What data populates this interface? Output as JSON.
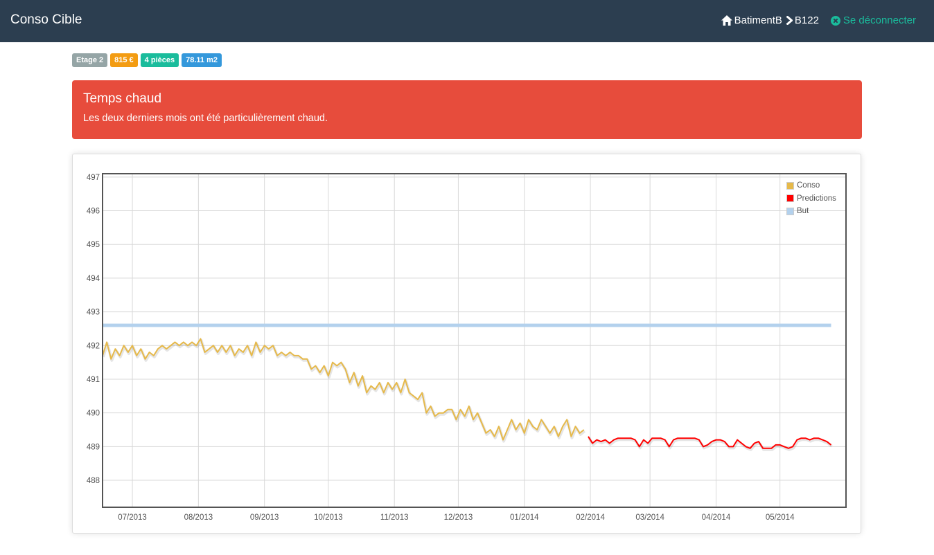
{
  "nav": {
    "brand": "Conso Cible",
    "building": "BatimentB",
    "unit": "B122",
    "logout": "Se déconnecter"
  },
  "badges": [
    {
      "label": "Etage 2",
      "color": "#95a5a6"
    },
    {
      "label": "815 €",
      "color": "#f39c12"
    },
    {
      "label": "4 pièces",
      "color": "#1abc9c"
    },
    {
      "label": "78.11 m2",
      "color": "#3498db"
    }
  ],
  "alert": {
    "title": "Temps chaud",
    "text": "Les deux derniers mois ont été particulièrement chaud."
  },
  "chart_data": {
    "type": "line",
    "title": "",
    "xlabel": "",
    "ylabel": "",
    "x_range": [
      "2013-06-17",
      "2014-06-01"
    ],
    "ylim": [
      487.2,
      497.1
    ],
    "grid": true,
    "legend_position": "top-right",
    "x_tick_labels": [
      "07/2013",
      "08/2013",
      "09/2013",
      "10/2013",
      "11/2013",
      "12/2013",
      "01/2014",
      "02/2014",
      "03/2014",
      "04/2014",
      "05/2014"
    ],
    "y_tick_labels": [
      "488",
      "489",
      "490",
      "491",
      "492",
      "493",
      "494",
      "495",
      "496",
      "497"
    ],
    "series": [
      {
        "name": "Conso",
        "color": "#e6b94a",
        "points": [
          [
            "2013-06-17",
            491.7
          ],
          [
            "2013-06-19",
            492.1
          ],
          [
            "2013-06-21",
            491.6
          ],
          [
            "2013-06-23",
            491.9
          ],
          [
            "2013-06-25",
            491.7
          ],
          [
            "2013-06-27",
            492.0
          ],
          [
            "2013-06-29",
            491.8
          ],
          [
            "2013-07-01",
            492.0
          ],
          [
            "2013-07-03",
            491.7
          ],
          [
            "2013-07-05",
            491.9
          ],
          [
            "2013-07-07",
            491.6
          ],
          [
            "2013-07-09",
            491.8
          ],
          [
            "2013-07-11",
            491.7
          ],
          [
            "2013-07-13",
            491.9
          ],
          [
            "2013-07-15",
            492.0
          ],
          [
            "2013-07-17",
            491.9
          ],
          [
            "2013-07-19",
            492.0
          ],
          [
            "2013-07-21",
            492.1
          ],
          [
            "2013-07-23",
            492.0
          ],
          [
            "2013-07-25",
            492.1
          ],
          [
            "2013-07-27",
            492.0
          ],
          [
            "2013-07-29",
            492.1
          ],
          [
            "2013-07-31",
            492.0
          ],
          [
            "2013-08-02",
            492.2
          ],
          [
            "2013-08-04",
            491.8
          ],
          [
            "2013-08-06",
            491.9
          ],
          [
            "2013-08-08",
            492.0
          ],
          [
            "2013-08-10",
            491.8
          ],
          [
            "2013-08-12",
            492.0
          ],
          [
            "2013-08-14",
            491.8
          ],
          [
            "2013-08-16",
            492.0
          ],
          [
            "2013-08-18",
            491.7
          ],
          [
            "2013-08-20",
            491.9
          ],
          [
            "2013-08-22",
            491.8
          ],
          [
            "2013-08-24",
            492.0
          ],
          [
            "2013-08-26",
            491.7
          ],
          [
            "2013-08-28",
            492.1
          ],
          [
            "2013-08-30",
            491.8
          ],
          [
            "2013-09-01",
            492.0
          ],
          [
            "2013-09-03",
            491.9
          ],
          [
            "2013-09-05",
            492.0
          ],
          [
            "2013-09-07",
            491.7
          ],
          [
            "2013-09-09",
            491.8
          ],
          [
            "2013-09-11",
            491.7
          ],
          [
            "2013-09-13",
            491.8
          ],
          [
            "2013-09-15",
            491.7
          ],
          [
            "2013-09-17",
            491.7
          ],
          [
            "2013-09-19",
            491.6
          ],
          [
            "2013-09-21",
            491.6
          ],
          [
            "2013-09-23",
            491.3
          ],
          [
            "2013-09-25",
            491.4
          ],
          [
            "2013-09-27",
            491.2
          ],
          [
            "2013-09-29",
            491.4
          ],
          [
            "2013-10-01",
            491.1
          ],
          [
            "2013-10-03",
            491.5
          ],
          [
            "2013-10-05",
            491.4
          ],
          [
            "2013-10-07",
            491.5
          ],
          [
            "2013-10-09",
            491.3
          ],
          [
            "2013-10-11",
            490.9
          ],
          [
            "2013-10-13",
            491.2
          ],
          [
            "2013-10-15",
            490.8
          ],
          [
            "2013-10-17",
            491.1
          ],
          [
            "2013-10-19",
            490.6
          ],
          [
            "2013-10-21",
            490.8
          ],
          [
            "2013-10-23",
            490.7
          ],
          [
            "2013-10-25",
            490.9
          ],
          [
            "2013-10-27",
            490.6
          ],
          [
            "2013-10-29",
            490.9
          ],
          [
            "2013-10-31",
            490.7
          ],
          [
            "2013-11-02",
            490.9
          ],
          [
            "2013-11-04",
            490.6
          ],
          [
            "2013-11-06",
            491.0
          ],
          [
            "2013-11-08",
            490.6
          ],
          [
            "2013-11-10",
            490.5
          ],
          [
            "2013-11-12",
            490.4
          ],
          [
            "2013-11-14",
            490.6
          ],
          [
            "2013-11-16",
            490.0
          ],
          [
            "2013-11-18",
            490.2
          ],
          [
            "2013-11-20",
            489.9
          ],
          [
            "2013-11-22",
            490.0
          ],
          [
            "2013-11-24",
            490.0
          ],
          [
            "2013-11-26",
            490.1
          ],
          [
            "2013-11-28",
            490.1
          ],
          [
            "2013-11-30",
            489.8
          ],
          [
            "2013-12-02",
            490.1
          ],
          [
            "2013-12-04",
            489.9
          ],
          [
            "2013-12-06",
            490.2
          ],
          [
            "2013-12-08",
            489.8
          ],
          [
            "2013-12-10",
            490.0
          ],
          [
            "2013-12-12",
            489.7
          ],
          [
            "2013-12-14",
            489.4
          ],
          [
            "2013-12-16",
            489.5
          ],
          [
            "2013-12-18",
            489.3
          ],
          [
            "2013-12-20",
            489.6
          ],
          [
            "2013-12-22",
            489.2
          ],
          [
            "2013-12-24",
            489.5
          ],
          [
            "2013-12-26",
            489.8
          ],
          [
            "2013-12-28",
            489.5
          ],
          [
            "2013-12-30",
            489.7
          ],
          [
            "2014-01-01",
            489.4
          ],
          [
            "2014-01-03",
            489.8
          ],
          [
            "2014-01-05",
            489.6
          ],
          [
            "2014-01-07",
            489.5
          ],
          [
            "2014-01-09",
            489.8
          ],
          [
            "2014-01-11",
            489.6
          ],
          [
            "2014-01-13",
            489.4
          ],
          [
            "2014-01-15",
            489.6
          ],
          [
            "2014-01-17",
            489.3
          ],
          [
            "2014-01-19",
            489.6
          ],
          [
            "2014-01-21",
            489.8
          ],
          [
            "2014-01-23",
            489.3
          ],
          [
            "2014-01-25",
            489.6
          ],
          [
            "2014-01-27",
            489.4
          ],
          [
            "2014-01-29",
            489.5
          ]
        ]
      },
      {
        "name": "Predictions",
        "color": "#ff0000",
        "points": [
          [
            "2014-01-31",
            489.3
          ],
          [
            "2014-02-02",
            489.1
          ],
          [
            "2014-02-04",
            489.2
          ],
          [
            "2014-02-06",
            489.15
          ],
          [
            "2014-02-08",
            489.2
          ],
          [
            "2014-02-10",
            489.1
          ],
          [
            "2014-02-12",
            489.2
          ],
          [
            "2014-02-14",
            489.25
          ],
          [
            "2014-02-16",
            489.25
          ],
          [
            "2014-02-18",
            489.25
          ],
          [
            "2014-02-20",
            489.25
          ],
          [
            "2014-02-22",
            489.2
          ],
          [
            "2014-02-24",
            489.0
          ],
          [
            "2014-02-26",
            489.2
          ],
          [
            "2014-02-28",
            489.1
          ],
          [
            "2014-03-02",
            489.25
          ],
          [
            "2014-03-04",
            489.25
          ],
          [
            "2014-03-06",
            489.25
          ],
          [
            "2014-03-08",
            489.2
          ],
          [
            "2014-03-10",
            489.0
          ],
          [
            "2014-03-12",
            489.2
          ],
          [
            "2014-03-14",
            489.25
          ],
          [
            "2014-03-16",
            489.25
          ],
          [
            "2014-03-18",
            489.25
          ],
          [
            "2014-03-20",
            489.25
          ],
          [
            "2014-03-22",
            489.25
          ],
          [
            "2014-03-24",
            489.2
          ],
          [
            "2014-03-26",
            489.0
          ],
          [
            "2014-03-28",
            489.05
          ],
          [
            "2014-03-30",
            489.15
          ],
          [
            "2014-04-01",
            489.2
          ],
          [
            "2014-04-03",
            489.2
          ],
          [
            "2014-04-05",
            489.15
          ],
          [
            "2014-04-07",
            489.0
          ],
          [
            "2014-04-09",
            489.0
          ],
          [
            "2014-04-11",
            489.2
          ],
          [
            "2014-04-13",
            489.1
          ],
          [
            "2014-04-15",
            489.0
          ],
          [
            "2014-04-17",
            488.95
          ],
          [
            "2014-04-19",
            489.1
          ],
          [
            "2014-04-21",
            489.15
          ],
          [
            "2014-04-23",
            488.95
          ],
          [
            "2014-04-25",
            488.95
          ],
          [
            "2014-04-27",
            488.95
          ],
          [
            "2014-04-29",
            489.05
          ],
          [
            "2014-05-01",
            489.05
          ],
          [
            "2014-05-03",
            489.0
          ],
          [
            "2014-05-05",
            488.95
          ],
          [
            "2014-05-07",
            489.0
          ],
          [
            "2014-05-09",
            489.2
          ],
          [
            "2014-05-11",
            489.25
          ],
          [
            "2014-05-13",
            489.25
          ],
          [
            "2014-05-15",
            489.2
          ],
          [
            "2014-05-17",
            489.25
          ],
          [
            "2014-05-19",
            489.25
          ],
          [
            "2014-05-21",
            489.2
          ],
          [
            "2014-05-23",
            489.15
          ],
          [
            "2014-05-25",
            489.05
          ]
        ]
      },
      {
        "name": "But",
        "color": "#b3d1ed",
        "points": [
          [
            "2013-06-17",
            492.6
          ],
          [
            "2014-05-25",
            492.6
          ]
        ]
      }
    ]
  }
}
